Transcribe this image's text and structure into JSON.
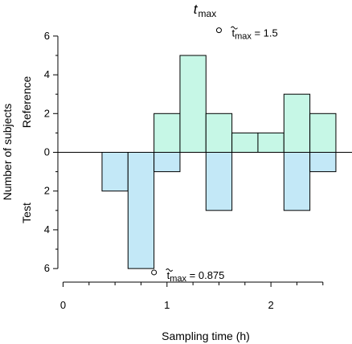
{
  "chart_data": {
    "type": "bar",
    "title": {
      "main": "t",
      "subscript": "max"
    },
    "xlabel": "Sampling time (h)",
    "ylabel": "Number of subjects",
    "group_labels": {
      "upper": "Reference",
      "lower": "Test"
    },
    "xlim": [
      -0.05,
      2.78
    ],
    "ylim": [
      -6.7,
      6.7
    ],
    "x_ticks_major": [
      0,
      1,
      2
    ],
    "x_ticks_minor": [
      0.25,
      0.5,
      0.75,
      1.25,
      1.5,
      1.75,
      2.25,
      2.5
    ],
    "y_ticks": [
      6,
      4,
      2,
      0,
      2,
      4,
      6
    ],
    "y_tick_values": [
      6,
      4,
      2,
      0,
      -2,
      -4,
      -6
    ],
    "bin_edges": [
      0.375,
      0.625,
      0.875,
      1.125,
      1.375,
      1.625,
      1.875,
      2.125,
      2.375,
      2.625
    ],
    "series": [
      {
        "name": "Reference",
        "direction": "up",
        "color": "#c6f7e6",
        "values": [
          0,
          0,
          2,
          5,
          2,
          1,
          1,
          3,
          2
        ]
      },
      {
        "name": "Test",
        "direction": "down",
        "color": "#c3e8f7",
        "values": [
          2,
          6,
          1,
          0,
          3,
          0,
          0,
          3,
          1
        ]
      }
    ],
    "annotations": [
      {
        "x": 1.5,
        "y": 6.3,
        "symbol": "~t",
        "subscript": "max",
        "text": "= 1.5"
      },
      {
        "x": 0.875,
        "y": -6.2,
        "symbol": "~t",
        "subscript": "max",
        "text": "= 0.875"
      }
    ],
    "grid": false,
    "legend": "none"
  }
}
